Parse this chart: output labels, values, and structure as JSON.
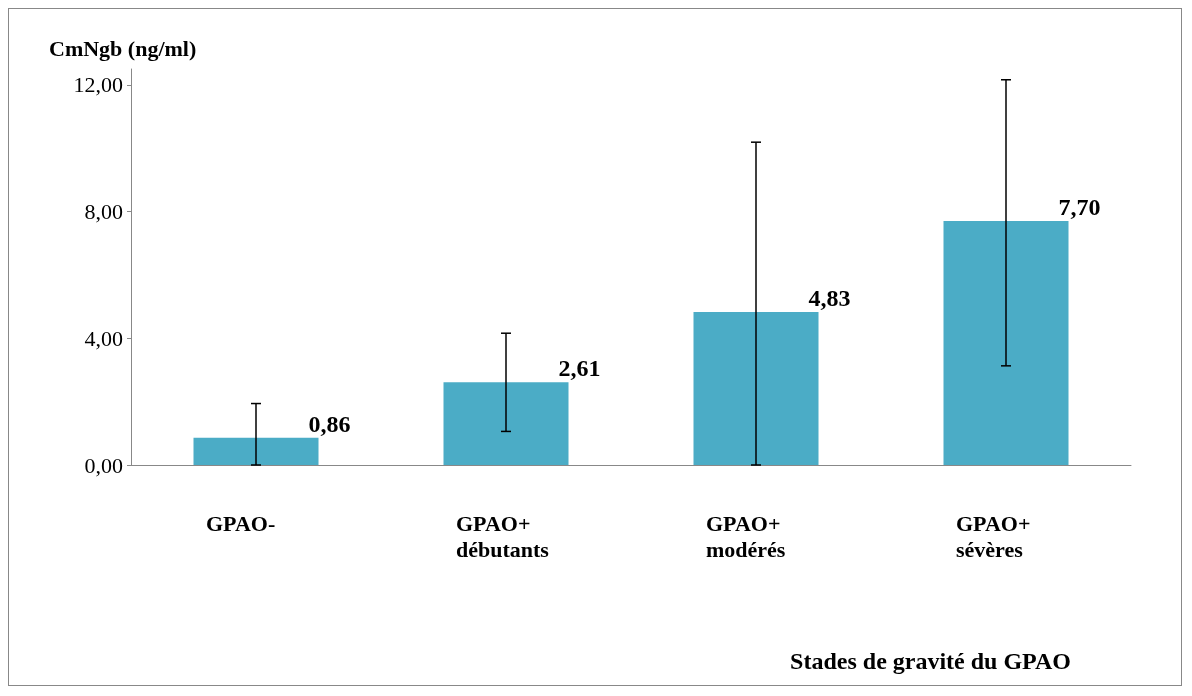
{
  "chart_data": {
    "type": "bar",
    "ylabel": "CmNgb (ng/ml)",
    "xlabel": "Stades de gravité du GPAO",
    "categories": [
      "GPAO-",
      "GPAO+\ndébutants",
      "GPAO+\nmodérés",
      "GPAO+\nsévères"
    ],
    "values": [
      0.86,
      2.61,
      4.83,
      7.7
    ],
    "value_labels": [
      "0,86",
      "2,61",
      "4,83",
      "7,70"
    ],
    "errors": [
      [
        0,
        1.94
      ],
      [
        1.06,
        4.16
      ],
      [
        0,
        10.19
      ],
      [
        3.13,
        12.16
      ]
    ],
    "color": "#4bacc6",
    "ylim": [
      0,
      12.5
    ],
    "yticks": [
      {
        "value": 0,
        "label": "0,00"
      },
      {
        "value": 4,
        "label": "4,00"
      },
      {
        "value": 8,
        "label": "8,00"
      },
      {
        "value": 12,
        "label": "12,00"
      }
    ],
    "grid": false
  }
}
